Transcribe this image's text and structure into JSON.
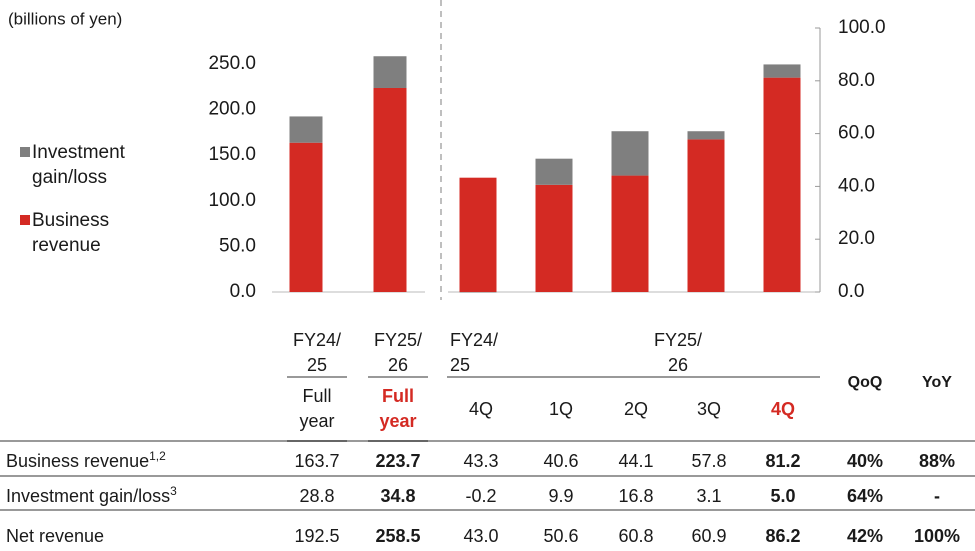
{
  "chart_data": [
    {
      "type": "bar",
      "stacked": true,
      "ylabel": "(billions of yen)",
      "y_axis_side": "left",
      "ylim": [
        0,
        250
      ],
      "yticks": [
        {
          "value": 0,
          "label": "0.0"
        },
        {
          "value": 50,
          "label": "50.0"
        },
        {
          "value": 100,
          "label": "100.0"
        },
        {
          "value": 150,
          "label": "150.0"
        },
        {
          "value": 200,
          "label": "200.0"
        },
        {
          "value": 250,
          "label": "250.0"
        }
      ],
      "series": [
        {
          "name": "Business revenue",
          "color": "#d42a23",
          "values": [
            163.7,
            223.7
          ]
        },
        {
          "name": "Investment gain/loss",
          "color": "#7f7f7f",
          "values": [
            28.8,
            34.8
          ]
        }
      ]
    },
    {
      "type": "bar",
      "stacked": true,
      "y_axis_side": "right",
      "ylim": [
        0,
        100
      ],
      "yticks": [
        {
          "value": 0,
          "label": "0.0"
        },
        {
          "value": 20,
          "label": "20.0"
        },
        {
          "value": 40,
          "label": "40.0"
        },
        {
          "value": 60,
          "label": "60.0"
        },
        {
          "value": 80,
          "label": "80.0"
        },
        {
          "value": 100,
          "label": "100.0"
        }
      ],
      "series": [
        {
          "color": "#d42a23",
          "values": [
            43.3,
            40.6,
            44.1,
            57.8,
            81.2
          ]
        },
        {
          "color": "#7f7f7f",
          "values": [
            -0.2,
            9.9,
            16.8,
            3.1,
            5.0
          ]
        }
      ]
    }
  ],
  "table": {
    "period_headers": [
      "FY24/25",
      "FY25/26",
      "FY24/25",
      "FY25/26"
    ],
    "column_headers": [
      "Full year",
      "Full year",
      "4Q",
      "1Q",
      "2Q",
      "3Q",
      "4Q",
      "QoQ",
      "YoY"
    ],
    "rows": [
      {
        "label": "Business revenue",
        "note": "1,2",
        "cells": [
          "163.7",
          "223.7",
          "43.3",
          "40.6",
          "44.1",
          "57.8",
          "81.2",
          "40%",
          "88%"
        ]
      },
      {
        "label": "Investment gain/loss",
        "note": "3",
        "cells": [
          "28.8",
          "34.8",
          "-0.2",
          "9.9",
          "16.8",
          "3.1",
          "5.0",
          "64%",
          "-"
        ]
      },
      {
        "label": "Net revenue",
        "cells": [
          "192.5",
          "258.5",
          "43.0",
          "50.6",
          "60.8",
          "60.9",
          "86.2",
          "42%",
          "100%"
        ]
      }
    ]
  }
}
